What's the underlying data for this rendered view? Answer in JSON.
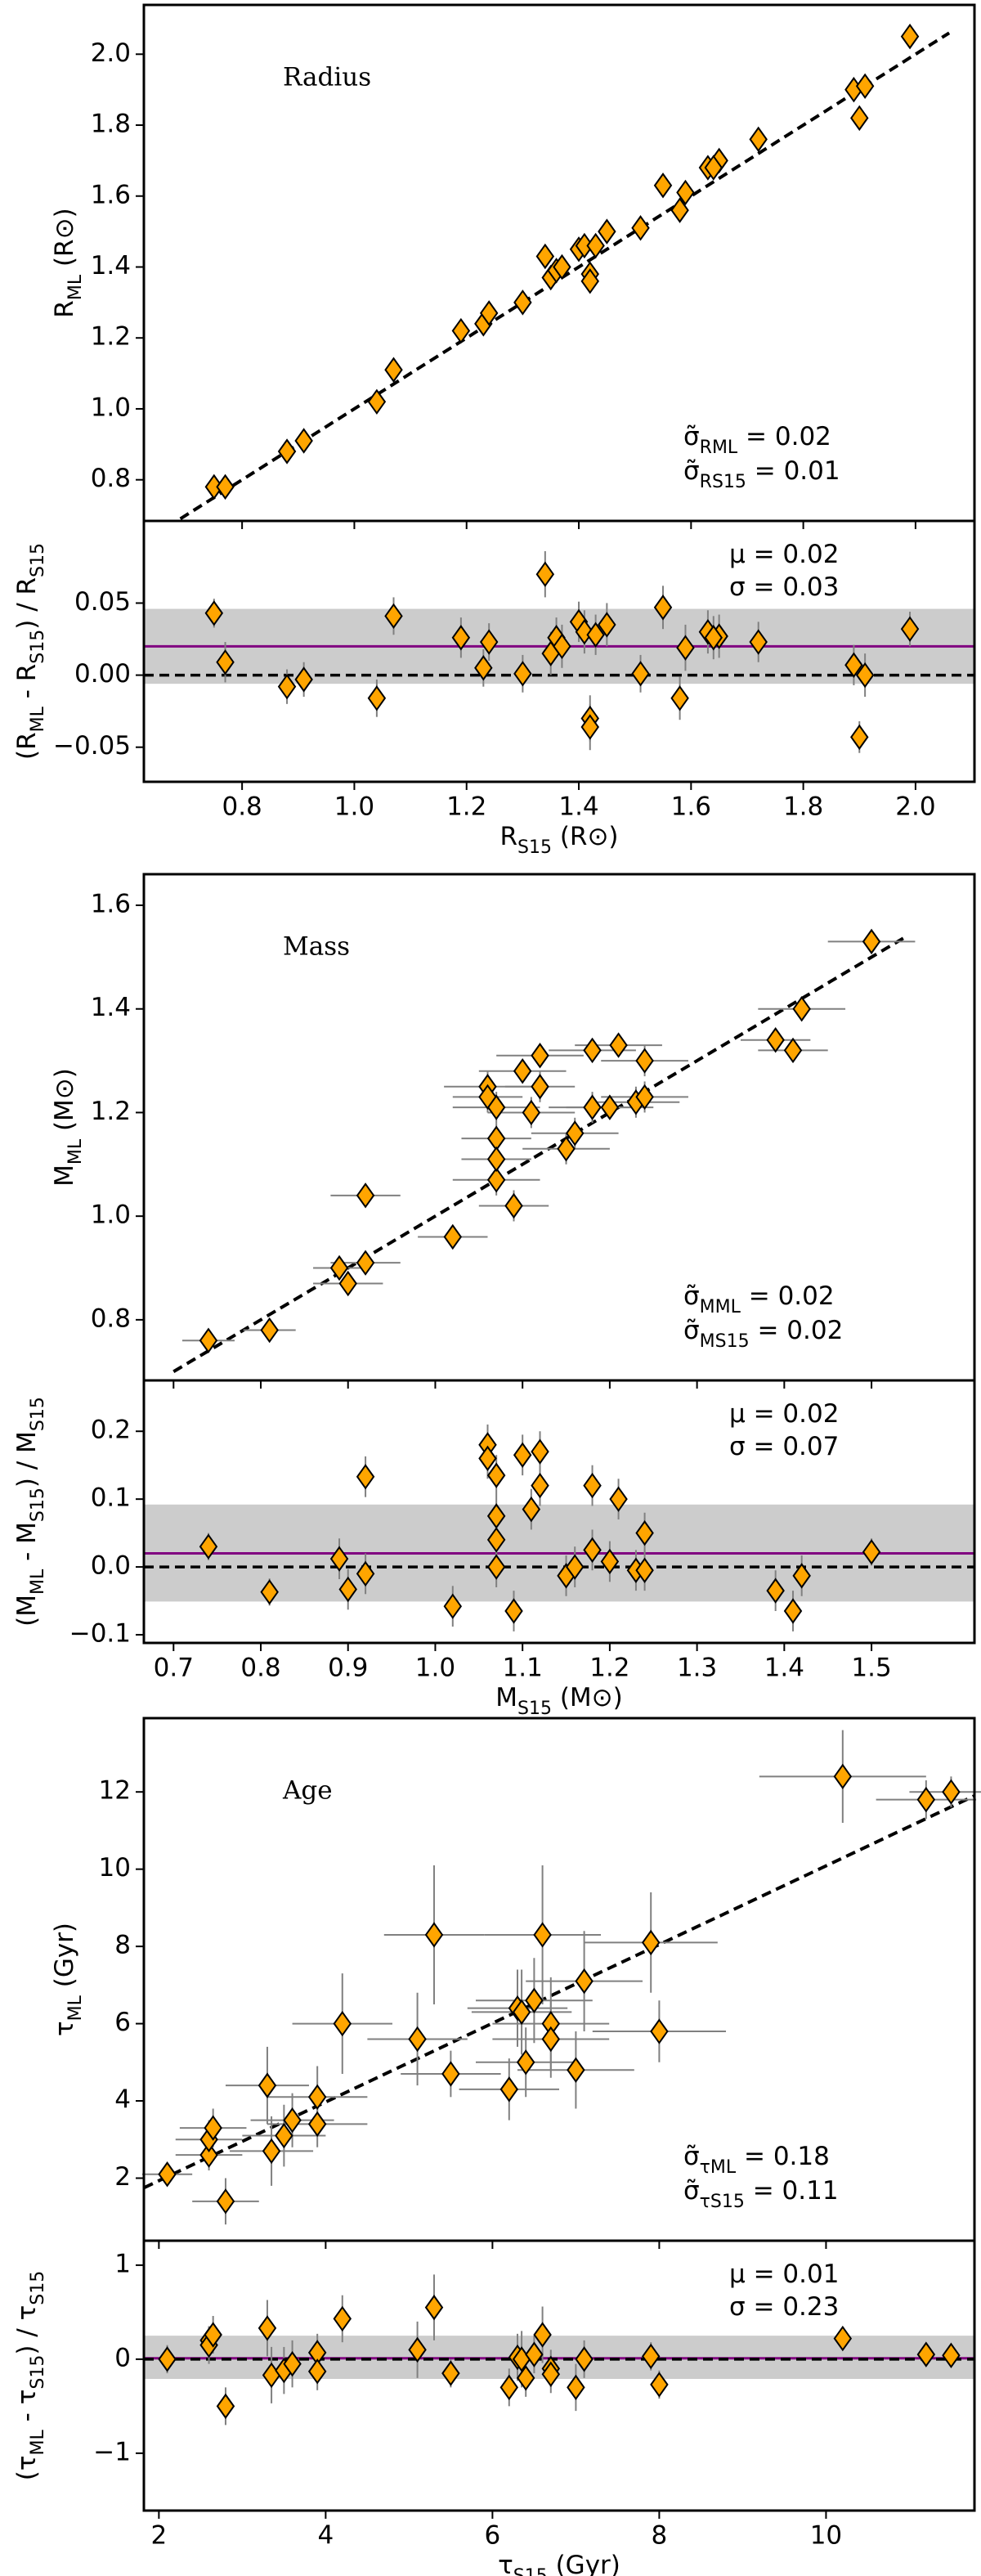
{
  "chart_data": [
    {
      "type": "scatter",
      "title": "Radius",
      "ylabel": [
        "R",
        "ML",
        " (R⊙)"
      ],
      "x": [
        0.75,
        0.77,
        0.88,
        0.91,
        1.04,
        1.07,
        1.19,
        1.23,
        1.24,
        1.3,
        1.34,
        1.35,
        1.36,
        1.37,
        1.4,
        1.41,
        1.42,
        1.42,
        1.43,
        1.45,
        1.51,
        1.55,
        1.58,
        1.59,
        1.63,
        1.65,
        1.64,
        1.72,
        1.89,
        1.9,
        1.91,
        1.99
      ],
      "values": [
        0.78,
        0.78,
        0.88,
        0.91,
        1.02,
        1.11,
        1.22,
        1.24,
        1.27,
        1.3,
        1.43,
        1.37,
        1.39,
        1.4,
        1.45,
        1.46,
        1.38,
        1.36,
        1.46,
        1.5,
        1.51,
        1.63,
        1.56,
        1.61,
        1.68,
        1.7,
        1.68,
        1.76,
        1.9,
        1.82,
        1.91,
        2.05
      ],
      "line_x": [
        0.69,
        2.06
      ],
      "line_y": [
        0.69,
        2.06
      ],
      "xlim": [
        0.625,
        2.105
      ],
      "ylim": [
        0.684,
        2.139
      ],
      "xticks": [
        0.8,
        1.0,
        1.2,
        1.4,
        1.6,
        1.8,
        2.0
      ],
      "yticks": [
        0.8,
        {
          "value": 1.0,
          "label": "1.0"
        },
        1.2,
        1.4,
        1.6,
        1.8,
        {
          "value": 2.0,
          "label": "2.0"
        }
      ],
      "annotations": [
        [
          "σ̃",
          "RML",
          " = 0.02"
        ],
        [
          "σ̃",
          "RS15",
          " = 0.01"
        ]
      ],
      "color": "#ffa500",
      "ecolor": "#808080"
    },
    {
      "type": "residual",
      "ylabel": [
        "(R",
        "ML",
        " - R",
        "S15",
        ") / R",
        "S15"
      ],
      "xlabel": [
        "R",
        "S15",
        " (R⊙)"
      ],
      "x": [
        0.75,
        0.77,
        0.88,
        0.91,
        1.04,
        1.07,
        1.19,
        1.23,
        1.24,
        1.3,
        1.34,
        1.35,
        1.36,
        1.37,
        1.4,
        1.41,
        1.42,
        1.42,
        1.43,
        1.45,
        1.51,
        1.55,
        1.58,
        1.59,
        1.63,
        1.65,
        1.64,
        1.72,
        1.89,
        1.9,
        1.91,
        1.99
      ],
      "values": [
        0.043,
        0.009,
        -0.008,
        -0.003,
        -0.016,
        0.041,
        0.026,
        0.005,
        0.023,
        0.001,
        0.07,
        0.015,
        0.026,
        0.02,
        0.037,
        0.03,
        -0.03,
        -0.036,
        0.028,
        0.035,
        0.001,
        0.047,
        -0.016,
        0.019,
        0.03,
        0.027,
        0.026,
        0.023,
        0.007,
        -0.043,
        0.0,
        0.032
      ],
      "yerr": [
        0.01,
        0.014,
        0.012,
        0.012,
        0.013,
        0.013,
        0.014,
        0.013,
        0.013,
        0.013,
        0.016,
        0.015,
        0.014,
        0.015,
        0.014,
        0.015,
        0.016,
        0.016,
        0.014,
        0.015,
        0.013,
        0.015,
        0.015,
        0.016,
        0.015,
        0.015,
        0.015,
        0.014,
        0.014,
        0.011,
        0.015,
        0.012
      ],
      "band": [
        -0.006,
        0.046
      ],
      "mean": 0.02,
      "hline": 0,
      "xlim": [
        0.625,
        2.105
      ],
      "ylim": [
        -0.074,
        0.107
      ],
      "xticks": [
        0.8,
        {
          "value": 1.0,
          "label": "1.0"
        },
        1.2,
        1.4,
        1.6,
        1.8,
        {
          "value": 2.0,
          "label": "2.0"
        }
      ],
      "yticks": [
        {
          "value": -0.05,
          "label": "−0.05"
        },
        {
          "value": 0,
          "label": "0.00"
        },
        0.05
      ],
      "annotations": [
        [
          "μ = 0.02"
        ],
        [
          "σ = 0.03"
        ]
      ],
      "color": "#ffa500",
      "ecolor": "#808080",
      "band_color": "#cccccc",
      "mean_color": "#800080"
    },
    {
      "type": "scatter",
      "title": "Mass",
      "ylabel": [
        "M",
        "ML",
        " (M⊙)"
      ],
      "x": [
        0.74,
        0.81,
        0.89,
        0.9,
        0.92,
        0.92,
        1.02,
        1.06,
        1.06,
        1.07,
        1.07,
        1.07,
        1.07,
        1.09,
        1.1,
        1.11,
        1.12,
        1.12,
        1.15,
        1.16,
        1.18,
        1.18,
        1.2,
        1.21,
        1.23,
        1.24,
        1.24,
        1.39,
        1.41,
        1.42,
        1.5
      ],
      "values": [
        0.76,
        0.78,
        0.9,
        0.87,
        1.04,
        0.91,
        0.96,
        1.25,
        1.23,
        1.07,
        1.21,
        1.15,
        1.11,
        1.02,
        1.28,
        1.2,
        1.31,
        1.25,
        1.13,
        1.16,
        1.32,
        1.21,
        1.21,
        1.33,
        1.22,
        1.3,
        1.23,
        1.34,
        1.32,
        1.4,
        1.53
      ],
      "xerr": [
        0.03,
        0.03,
        0.03,
        0.04,
        0.04,
        0.04,
        0.04,
        0.05,
        0.04,
        0.05,
        0.05,
        0.04,
        0.04,
        0.04,
        0.05,
        0.05,
        0.05,
        0.04,
        0.05,
        0.05,
        0.05,
        0.05,
        0.05,
        0.05,
        0.05,
        0.05,
        0.05,
        0.04,
        0.04,
        0.05,
        0.05
      ],
      "yerr": [
        0.01,
        0.01,
        0.02,
        0.02,
        0.02,
        0.02,
        0.02,
        0.03,
        0.03,
        0.03,
        0.03,
        0.03,
        0.03,
        0.03,
        0.02,
        0.03,
        0.02,
        0.03,
        0.03,
        0.03,
        0.02,
        0.03,
        0.02,
        0.02,
        0.03,
        0.03,
        0.03,
        0.02,
        0.02,
        0.02,
        0.01
      ],
      "line_x": [
        0.7,
        1.54
      ],
      "line_y": [
        0.7,
        1.54
      ],
      "xlim": [
        0.666,
        1.618
      ],
      "ylim": [
        0.683,
        1.66
      ],
      "xticks": [
        0.7,
        0.8,
        0.9,
        1.0,
        1.1,
        1.2,
        1.3,
        1.4,
        1.5
      ],
      "yticks": [
        0.8,
        {
          "value": 1.0,
          "label": "1.0"
        },
        1.2,
        1.4,
        1.6
      ],
      "annotations": [
        [
          "σ̃",
          "MML",
          " = 0.02"
        ],
        [
          "σ̃",
          "MS15",
          " = 0.02"
        ]
      ],
      "color": "#ffa500",
      "ecolor": "#808080"
    },
    {
      "type": "residual",
      "ylabel": [
        "(M",
        "ML",
        " - M",
        "S15",
        ") / M",
        "S15"
      ],
      "xlabel": [
        "M",
        "S15",
        " (M⊙)"
      ],
      "x": [
        0.74,
        0.81,
        0.89,
        0.9,
        0.92,
        0.92,
        1.02,
        1.06,
        1.06,
        1.07,
        1.07,
        1.07,
        1.07,
        1.09,
        1.1,
        1.11,
        1.12,
        1.12,
        1.15,
        1.16,
        1.18,
        1.18,
        1.2,
        1.21,
        1.23,
        1.24,
        1.24,
        1.39,
        1.41,
        1.42,
        1.5
      ],
      "values": [
        0.03,
        -0.037,
        0.012,
        -0.033,
        0.133,
        -0.01,
        -0.058,
        0.18,
        0.16,
        0.0,
        0.135,
        0.075,
        0.04,
        -0.065,
        0.165,
        0.085,
        0.17,
        0.12,
        -0.013,
        0.0,
        0.12,
        0.025,
        0.008,
        0.1,
        -0.005,
        0.05,
        -0.005,
        -0.035,
        -0.065,
        -0.013,
        0.022
      ],
      "yerr": [
        0.02,
        0.02,
        0.03,
        0.03,
        0.03,
        0.03,
        0.03,
        0.03,
        0.03,
        0.03,
        0.03,
        0.03,
        0.03,
        0.03,
        0.03,
        0.03,
        0.03,
        0.03,
        0.03,
        0.03,
        0.03,
        0.03,
        0.03,
        0.03,
        0.03,
        0.03,
        0.03,
        0.03,
        0.03,
        0.03,
        0.02
      ],
      "band": [
        -0.051,
        0.092
      ],
      "mean": 0.02,
      "hline": 0,
      "xlim": [
        0.666,
        1.618
      ],
      "ylim": [
        -0.112,
        0.275
      ],
      "xticks": [
        0.7,
        0.8,
        0.9,
        {
          "value": 1.0,
          "label": "1.0"
        },
        1.1,
        1.2,
        1.3,
        1.4,
        1.5
      ],
      "yticks": [
        {
          "value": -0.1,
          "label": "−0.1"
        },
        {
          "value": 0,
          "label": "0.0"
        },
        0.1,
        0.2
      ],
      "annotations": [
        [
          "μ = 0.02"
        ],
        [
          "σ = 0.07"
        ]
      ],
      "color": "#ffa500",
      "ecolor": "#808080",
      "band_color": "#cccccc",
      "mean_color": "#800080"
    },
    {
      "type": "scatter",
      "title": "Age",
      "ylabel": [
        "τ",
        "ML",
        " (Gyr)"
      ],
      "x": [
        2.1,
        2.6,
        2.6,
        2.65,
        2.8,
        3.3,
        3.35,
        3.5,
        3.6,
        3.9,
        3.9,
        4.2,
        5.1,
        5.3,
        5.5,
        6.2,
        6.3,
        6.35,
        6.4,
        6.5,
        6.6,
        6.7,
        6.7,
        7.0,
        7.1,
        7.9,
        8.0,
        10.2,
        11.2,
        11.5
      ],
      "values": [
        2.1,
        2.6,
        3.0,
        3.3,
        1.4,
        4.4,
        2.7,
        3.1,
        3.5,
        4.1,
        3.4,
        6.0,
        5.6,
        8.3,
        4.7,
        4.3,
        6.4,
        6.3,
        5.0,
        6.6,
        8.3,
        6.0,
        5.6,
        4.8,
        7.1,
        8.1,
        5.8,
        12.4,
        11.8,
        12.0
      ],
      "xerr": [
        0.3,
        0.4,
        0.4,
        0.4,
        0.4,
        0.5,
        0.5,
        0.5,
        0.5,
        0.6,
        0.6,
        0.6,
        0.6,
        0.6,
        0.6,
        0.6,
        0.6,
        0.6,
        0.6,
        0.7,
        0.7,
        0.7,
        0.7,
        0.7,
        0.7,
        0.8,
        0.8,
        1.0,
        0.6,
        0.5
      ],
      "yerr": [
        0.3,
        0.4,
        0.5,
        0.5,
        0.6,
        1.0,
        0.9,
        0.8,
        0.7,
        0.8,
        0.6,
        1.3,
        1.2,
        1.8,
        0.6,
        0.8,
        1.0,
        1.1,
        0.9,
        1.1,
        1.8,
        1.2,
        1.0,
        1.0,
        1.3,
        1.3,
        0.8,
        1.2,
        0.5,
        0.4
      ],
      "line_x": [
        1.82,
        11.78
      ],
      "line_y": [
        1.75,
        11.9
      ],
      "xlim": [
        1.82,
        11.78
      ],
      "ylim": [
        0.38,
        13.91
      ],
      "xticks": [
        2,
        4,
        6,
        8,
        10
      ],
      "yticks": [
        2,
        4,
        6,
        8,
        10,
        12
      ],
      "annotations": [
        [
          "σ̃",
          "τML",
          " = 0.18"
        ],
        [
          "σ̃",
          "τS15",
          " = 0.11"
        ]
      ],
      "color": "#ffa500",
      "ecolor": "#808080"
    },
    {
      "type": "residual",
      "ylabel": [
        "(τ",
        "ML",
        " - τ",
        "S15",
        ") / τ",
        "S15"
      ],
      "xlabel": [
        "τ",
        "S15",
        " (Gyr)"
      ],
      "x": [
        2.1,
        2.6,
        2.6,
        2.65,
        2.8,
        3.3,
        3.35,
        3.5,
        3.6,
        3.9,
        3.9,
        4.2,
        5.1,
        5.3,
        5.5,
        6.2,
        6.3,
        6.35,
        6.4,
        6.5,
        6.6,
        6.7,
        6.7,
        7.0,
        7.1,
        7.9,
        8.0,
        10.2,
        11.2,
        11.5
      ],
      "values": [
        0.0,
        0.2,
        0.15,
        0.26,
        -0.5,
        0.33,
        -0.17,
        -0.12,
        -0.05,
        0.07,
        -0.13,
        0.43,
        0.1,
        0.55,
        -0.15,
        -0.3,
        0.02,
        0.0,
        -0.2,
        0.05,
        0.26,
        -0.1,
        -0.16,
        -0.3,
        0.0,
        0.03,
        -0.27,
        0.22,
        0.05,
        0.04
      ],
      "yerr": [
        0.15,
        0.15,
        0.2,
        0.2,
        0.2,
        0.3,
        0.3,
        0.25,
        0.25,
        0.2,
        0.2,
        0.25,
        0.3,
        0.35,
        0.15,
        0.2,
        0.25,
        0.3,
        0.2,
        0.2,
        0.3,
        0.2,
        0.2,
        0.25,
        0.2,
        0.15,
        0.15,
        0.1,
        0.05,
        0.05
      ],
      "band": [
        -0.21,
        0.25
      ],
      "mean": 0.01,
      "hline": 0,
      "xlim": [
        1.82,
        11.78
      ],
      "ylim": [
        -1.61,
        1.26
      ],
      "xticks": [
        2,
        4,
        6,
        8,
        10
      ],
      "yticks": [
        {
          "value": -1,
          "label": "−1"
        },
        0,
        1
      ],
      "annotations": [
        [
          "μ = 0.01"
        ],
        [
          "σ = 0.23"
        ]
      ],
      "color": "#ffa500",
      "ecolor": "#808080",
      "band_color": "#cccccc",
      "mean_color": "#800080"
    }
  ]
}
